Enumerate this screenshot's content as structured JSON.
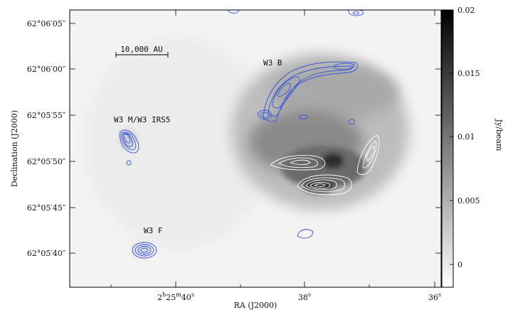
{
  "figure": {
    "xlabel": "RA (J2000)",
    "ylabel": "Declination (J2000)",
    "colorbar_label": "Jy/beam",
    "ra_ticks": [
      {
        "label": "2h25m40s",
        "main": "2",
        "h": "h",
        "mid": "25",
        "m": "m",
        "sec": "40",
        "s": "s"
      },
      {
        "label": "38s",
        "main": "38",
        "s": "s"
      },
      {
        "label": "36s",
        "main": "36",
        "s": "s"
      }
    ],
    "dec_ticks": [
      "62°06′05″",
      "62°06′00″",
      "62°05′55″",
      "62°05′50″",
      "62°05′45″",
      "62°05′40″"
    ],
    "colorbar_ticks": [
      "0.02",
      "0.015",
      "0.01",
      "0.005",
      "0"
    ],
    "scale_bar_label": "10,000 AU",
    "sources": [
      "W3 B",
      "W3 M/W3 IRS5",
      "W3 F"
    ],
    "colors": {
      "blue_contours": "#3355dd",
      "white_contours": "#ffffff",
      "frame": "#000000"
    },
    "chart_data": {
      "type": "heatmap",
      "title": "",
      "xlabel": "RA (J2000)",
      "ylabel": "Declination (J2000)",
      "colorbar": {
        "label": "Jy/beam",
        "range": [
          0,
          0.02
        ],
        "ticks": [
          0,
          0.005,
          0.01,
          0.015,
          0.02
        ]
      },
      "annotations": [
        "W3 B",
        "W3 M/W3 IRS5",
        "W3 F",
        "10,000 AU"
      ]
    }
  }
}
